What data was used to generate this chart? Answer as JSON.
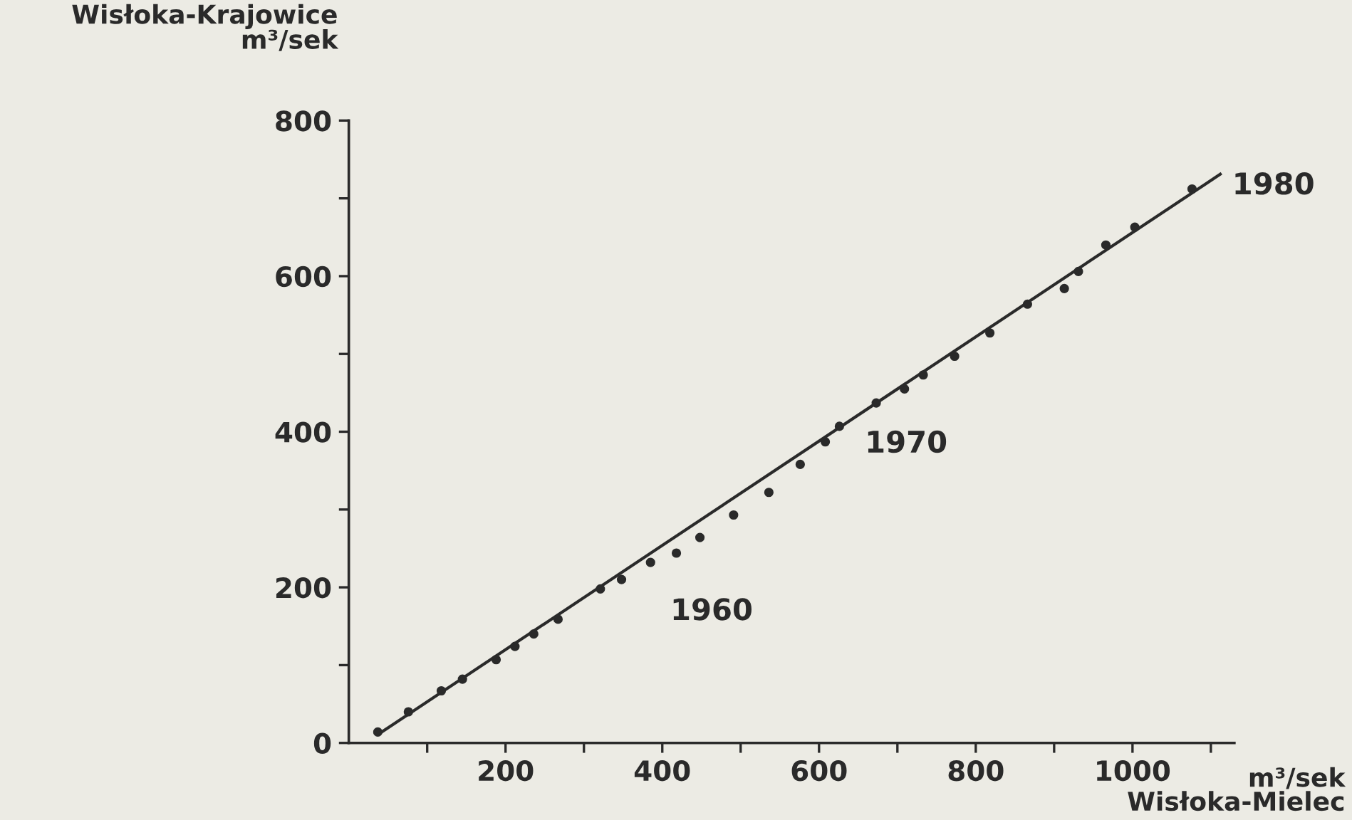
{
  "chart_data": {
    "type": "scatter",
    "xlabel": "m³/sek\nWisłoka-Mielec",
    "ylabel": "Wisłoka-Krajowice\nm³/sek",
    "series": [
      {
        "color": "#2a2a2a",
        "marker": "circle",
        "x": [
          37,
          76,
          118,
          145,
          188,
          212,
          236,
          267,
          321,
          348,
          385,
          418,
          448,
          491,
          536,
          576,
          608,
          626,
          673,
          709,
          733,
          773,
          818,
          866,
          913,
          931,
          966,
          1003,
          1076
        ],
        "values": [
          14,
          40,
          67,
          82,
          107,
          124,
          140,
          159,
          198,
          210,
          232,
          244,
          264,
          293,
          322,
          358,
          387,
          407,
          437,
          455,
          473,
          497,
          527,
          564,
          584,
          606,
          640,
          663,
          712
        ]
      },
      {
        "type": "line",
        "color": "#2a2a2a",
        "line_style": "solid",
        "marker": "none",
        "x": [
          39,
          1112
        ],
        "values": [
          12,
          731
        ]
      }
    ],
    "annotations": [
      {
        "text": "1960",
        "x": 385,
        "y": 232
      },
      {
        "text": "1970",
        "x": 709,
        "y": 455
      },
      {
        "text": "1980",
        "x": 1112,
        "y": 731
      }
    ],
    "xlim": [
      0,
      1130
    ],
    "ylim": [
      0,
      800
    ],
    "xticks": [
      {
        "value": 100,
        "label": null
      },
      200,
      {
        "value": 300,
        "label": null
      },
      400,
      {
        "value": 500,
        "label": null
      },
      600,
      {
        "value": 700,
        "label": null
      },
      800,
      {
        "value": 900,
        "label": null
      },
      1000,
      {
        "value": 1100,
        "label": null
      }
    ],
    "yticks": [
      0,
      {
        "value": 100,
        "label": null
      },
      200,
      {
        "value": 300,
        "label": null
      },
      400,
      {
        "value": 500,
        "label": null
      },
      600,
      {
        "value": 700,
        "label": null
      },
      800
    ],
    "grid": false,
    "legend": false
  }
}
